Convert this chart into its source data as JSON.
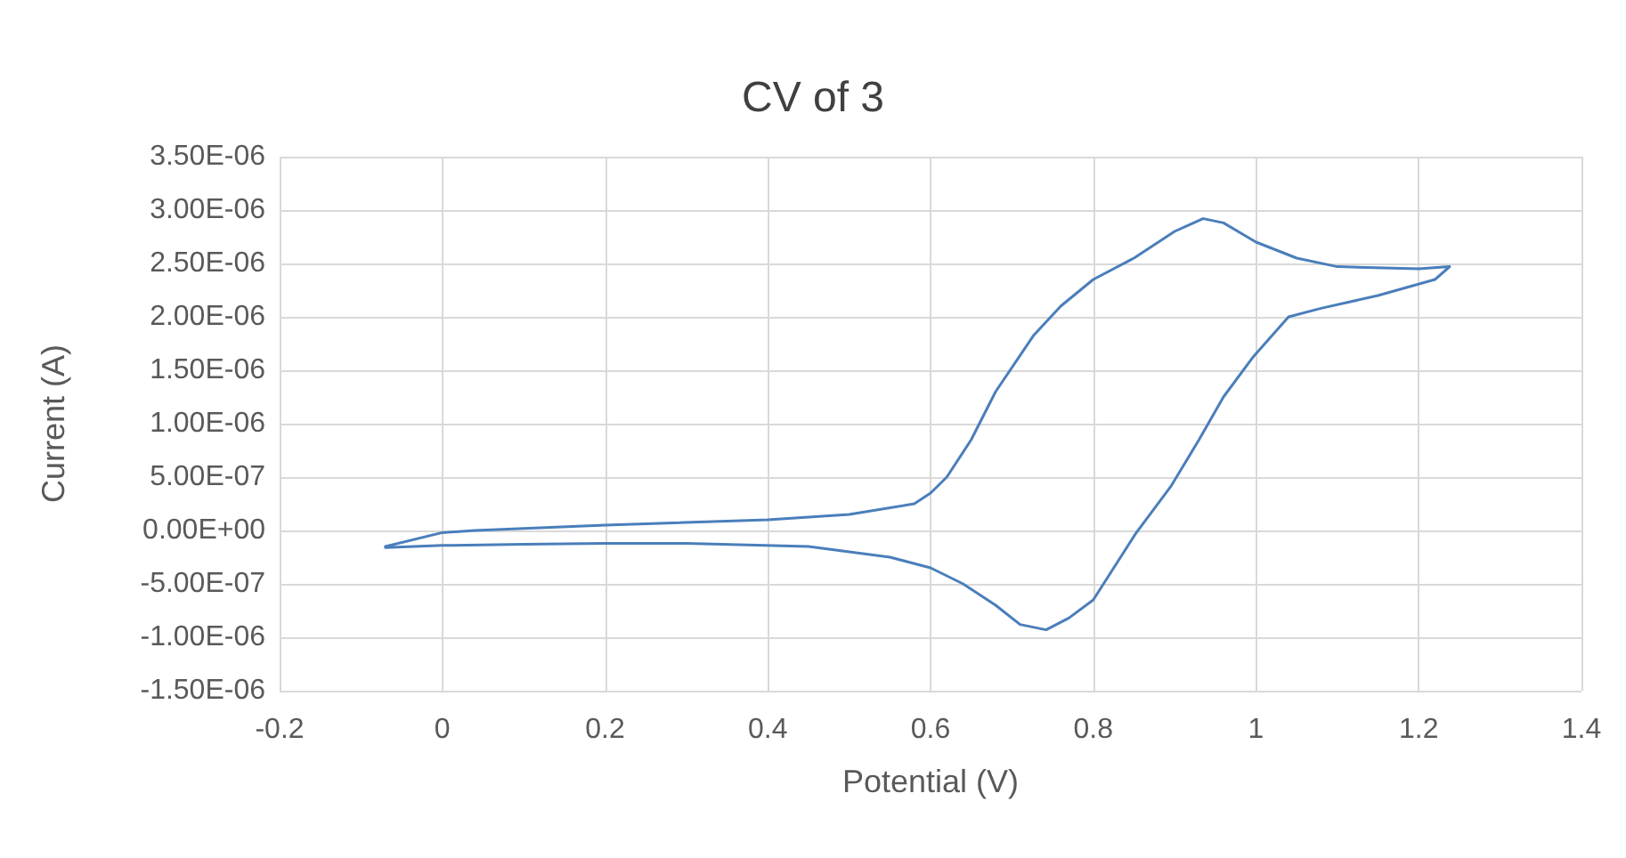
{
  "chart_data": {
    "type": "line",
    "title": "CV of 3",
    "xlabel": "Potential (V)",
    "ylabel": "Current (A)",
    "series": [
      {
        "color": "#4a7ebb",
        "x": [
          -0.07,
          0.0,
          0.04,
          0.2,
          0.4,
          0.5,
          0.58,
          0.6,
          0.62,
          0.65,
          0.68,
          0.727,
          0.76,
          0.8,
          0.85,
          0.9,
          0.935,
          0.96,
          1.0,
          1.05,
          1.1,
          1.2,
          1.238,
          1.22,
          1.15,
          1.08,
          1.04,
          0.997,
          0.96,
          0.93,
          0.896,
          0.852,
          0.8,
          0.77,
          0.742,
          0.71,
          0.68,
          0.64,
          0.6,
          0.55,
          0.45,
          0.3,
          0.2,
          0.1,
          0.0,
          -0.07
        ],
        "values": [
          -1.5e-07,
          -2e-08,
          0,
          5e-08,
          1e-07,
          1.5e-07,
          2.5e-07,
          3.5e-07,
          5e-07,
          8.5e-07,
          1.3e-06,
          1.83e-06,
          2.1e-06,
          2.35e-06,
          2.55e-06,
          2.8e-06,
          2.92e-06,
          2.88e-06,
          2.7e-06,
          2.55e-06,
          2.47e-06,
          2.45e-06,
          2.47e-06,
          2.35e-06,
          2.2e-06,
          2.08e-06,
          2e-06,
          1.63e-06,
          1.25e-06,
          8.5e-07,
          4.2e-07,
          -3e-08,
          -6.5e-07,
          -8.2e-07,
          -9.3e-07,
          -8.8e-07,
          -7e-07,
          -5e-07,
          -3.5e-07,
          -2.5e-07,
          -1.5e-07,
          -1.2e-07,
          -1.2e-07,
          -1.3e-07,
          -1.4e-07,
          -1.6e-07
        ]
      }
    ],
    "xlim": [
      -0.2,
      1.4
    ],
    "xticks": [
      -0.2,
      0,
      0.2,
      0.4,
      0.6,
      0.8,
      1,
      1.2,
      1.4
    ],
    "ylim": [
      -1.5e-06,
      3.5e-06
    ],
    "yticks": [
      {
        "value": -1.5e-06,
        "label": "-1.50E-06"
      },
      {
        "value": -1e-06,
        "label": "-1.00E-06"
      },
      {
        "value": -5e-07,
        "label": "-5.00E-07"
      },
      {
        "value": 0,
        "label": "0.00E+00"
      },
      {
        "value": 5e-07,
        "label": "5.00E-07"
      },
      {
        "value": 1e-06,
        "label": "1.00E-06"
      },
      {
        "value": 1.5e-06,
        "label": "1.50E-06"
      },
      {
        "value": 2e-06,
        "label": "2.00E-06"
      },
      {
        "value": 2.5e-06,
        "label": "2.50E-06"
      },
      {
        "value": 3e-06,
        "label": "3.00E-06"
      },
      {
        "value": 3.5e-06,
        "label": "3.50E-06"
      }
    ],
    "grid": true,
    "marker": "none",
    "line_style": "solid"
  }
}
